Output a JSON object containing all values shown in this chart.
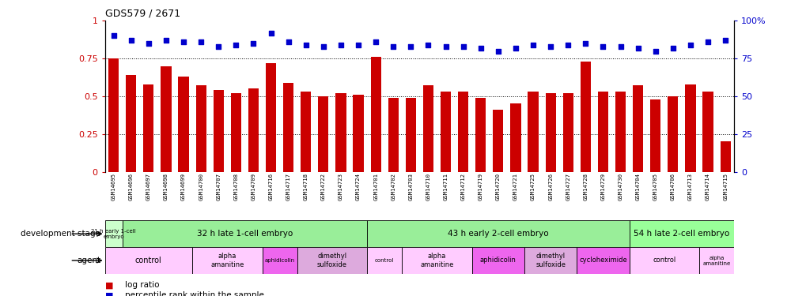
{
  "title": "GDS579 / 2671",
  "gsm_ids": [
    "GSM14695",
    "GSM14696",
    "GSM14697",
    "GSM14698",
    "GSM14699",
    "GSM14700",
    "GSM14707",
    "GSM14708",
    "GSM14709",
    "GSM14716",
    "GSM14717",
    "GSM14718",
    "GSM14722",
    "GSM14723",
    "GSM14724",
    "GSM14701",
    "GSM14702",
    "GSM14703",
    "GSM14710",
    "GSM14711",
    "GSM14712",
    "GSM14719",
    "GSM14720",
    "GSM14721",
    "GSM14725",
    "GSM14726",
    "GSM14727",
    "GSM14728",
    "GSM14729",
    "GSM14730",
    "GSM14704",
    "GSM14705",
    "GSM14706",
    "GSM14713",
    "GSM14714",
    "GSM14715"
  ],
  "log_ratio": [
    0.75,
    0.64,
    0.58,
    0.7,
    0.63,
    0.57,
    0.54,
    0.52,
    0.55,
    0.72,
    0.59,
    0.53,
    0.5,
    0.52,
    0.51,
    0.76,
    0.49,
    0.49,
    0.57,
    0.53,
    0.53,
    0.49,
    0.41,
    0.45,
    0.53,
    0.52,
    0.52,
    0.73,
    0.53,
    0.53,
    0.57,
    0.48,
    0.5,
    0.58,
    0.53,
    0.2
  ],
  "pct_rank": [
    0.9,
    0.87,
    0.85,
    0.87,
    0.86,
    0.86,
    0.83,
    0.84,
    0.85,
    0.92,
    0.86,
    0.84,
    0.83,
    0.84,
    0.84,
    0.86,
    0.83,
    0.83,
    0.84,
    0.83,
    0.83,
    0.82,
    0.8,
    0.82,
    0.84,
    0.83,
    0.84,
    0.85,
    0.83,
    0.83,
    0.82,
    0.8,
    0.82,
    0.84,
    0.86,
    0.87
  ],
  "bar_color": "#cc0000",
  "dot_color": "#0000cc",
  "bar_width": 0.6,
  "yticks_left": [
    0,
    0.25,
    0.5,
    0.75,
    1.0
  ],
  "yticks_right": [
    0,
    25,
    50,
    75,
    100
  ],
  "dotted_lines": [
    0.25,
    0.5,
    0.75
  ],
  "dev_groups": [
    {
      "label": "21 h early 1-cell\nembryо",
      "start": 0,
      "end": 1,
      "color": "#ccffcc"
    },
    {
      "label": "32 h late 1-cell embryo",
      "start": 1,
      "end": 15,
      "color": "#99ee99"
    },
    {
      "label": "43 h early 2-cell embryo",
      "start": 15,
      "end": 30,
      "color": "#99ee99"
    },
    {
      "label": "54 h late 2-cell embryo",
      "start": 30,
      "end": 36,
      "color": "#99ff99"
    }
  ],
  "agent_groups": [
    {
      "label": "control",
      "start": 0,
      "end": 5,
      "color": "#ffccff"
    },
    {
      "label": "alpha\namanitine",
      "start": 5,
      "end": 9,
      "color": "#ffccff"
    },
    {
      "label": "aphidicolin",
      "start": 9,
      "end": 11,
      "color": "#ee66ee"
    },
    {
      "label": "dimethyl\nsulfoxide",
      "start": 11,
      "end": 15,
      "color": "#ddaadd"
    },
    {
      "label": "control",
      "start": 15,
      "end": 17,
      "color": "#ffccff"
    },
    {
      "label": "alpha\namanitine",
      "start": 17,
      "end": 21,
      "color": "#ffccff"
    },
    {
      "label": "aphidicolin",
      "start": 21,
      "end": 24,
      "color": "#ee66ee"
    },
    {
      "label": "dimethyl\nsulfoxide",
      "start": 24,
      "end": 27,
      "color": "#ddaadd"
    },
    {
      "label": "cycloheximide",
      "start": 27,
      "end": 30,
      "color": "#ee66ee"
    },
    {
      "label": "control",
      "start": 30,
      "end": 34,
      "color": "#ffccff"
    },
    {
      "label": "alpha\namanitine",
      "start": 34,
      "end": 36,
      "color": "#ffccff"
    }
  ],
  "tick_bg": "#d8d8d8",
  "legend_bar_label": "log ratio",
  "legend_dot_label": "percentile rank within the sample",
  "dev_label": "development stage",
  "agent_label": "agent"
}
